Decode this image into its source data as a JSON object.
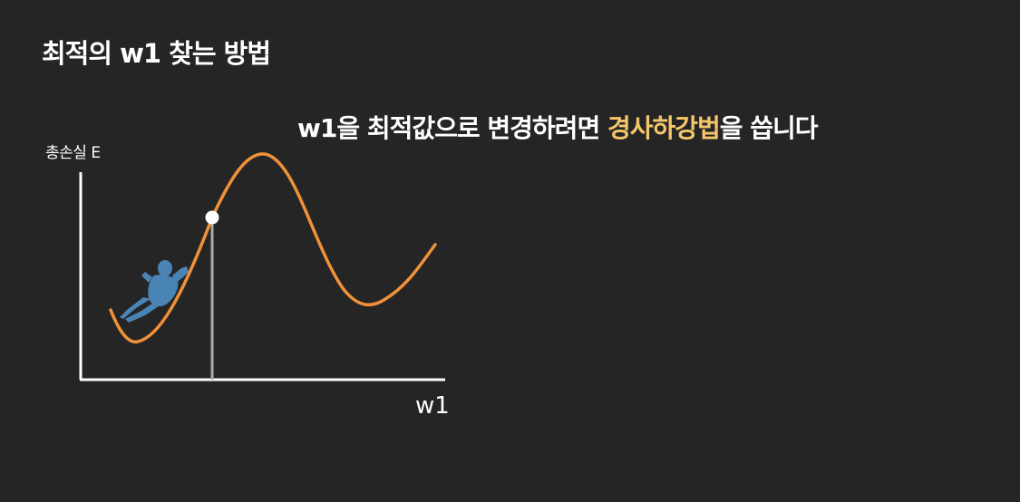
{
  "slide": {
    "title": "최적의 w1 찾는 방법",
    "subtitle_prefix": "w1을 최적값으로 변경하려면 ",
    "subtitle_highlight": "경사하강법",
    "subtitle_suffix": "을 씁니다"
  },
  "diagram": {
    "y_axis_label": "총손실 E",
    "x_axis_label": "w1",
    "icons": {
      "figure": "sliding-person-icon",
      "point": "current-position-marker"
    },
    "colors": {
      "background": "#252525",
      "curve": "#f0913a",
      "axis": "#ffffff",
      "drop_line": "#aaaaaa",
      "marker": "#ffffff",
      "figure": "#4a84b5",
      "highlight": "#f5c56a"
    }
  }
}
